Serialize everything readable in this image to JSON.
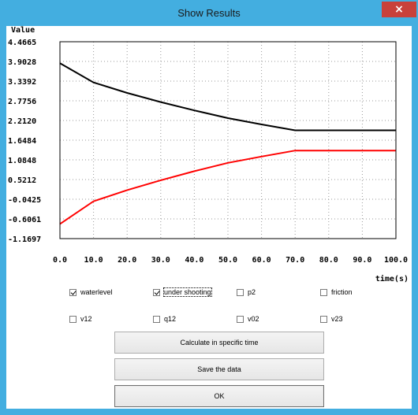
{
  "window": {
    "title": "Show Results",
    "close_label": "×"
  },
  "chart_data": {
    "type": "line",
    "ylabel": "Value",
    "xlabel": "time(s)",
    "y_ticks": [
      "4.4665",
      "3.9028",
      "3.3392",
      "2.7756",
      "2.2120",
      "1.6484",
      "1.0848",
      "0.5212",
      "-0.0425",
      "-0.6061",
      "-1.1697"
    ],
    "x_ticks": [
      "0.0",
      "10.0",
      "20.0",
      "30.0",
      "40.0",
      "50.0",
      "60.0",
      "70.0",
      "80.0",
      "90.0",
      "100.0"
    ],
    "xlim": [
      0,
      100
    ],
    "ylim": [
      -1.1697,
      4.4665
    ],
    "grid": true,
    "series": [
      {
        "color": "#000000",
        "x": [
          0,
          10,
          20,
          30,
          40,
          50,
          60,
          70,
          80,
          90,
          100
        ],
        "y": [
          3.85,
          3.3,
          3.0,
          2.74,
          2.5,
          2.28,
          2.1,
          1.93,
          1.93,
          1.93,
          1.93
        ]
      },
      {
        "color": "#ff0000",
        "x": [
          0,
          10,
          20,
          30,
          40,
          50,
          60,
          70,
          80,
          90,
          100
        ],
        "y": [
          -0.75,
          -0.1,
          0.22,
          0.5,
          0.76,
          1.0,
          1.18,
          1.35,
          1.35,
          1.35,
          1.35
        ]
      }
    ]
  },
  "checkboxes": [
    {
      "label": "waterlevel",
      "checked": true
    },
    {
      "label": "under shooting",
      "checked": true
    },
    {
      "label": "p2",
      "checked": false
    },
    {
      "label": "friction",
      "checked": false
    },
    {
      "label": "v12",
      "checked": false
    },
    {
      "label": "q12",
      "checked": false
    },
    {
      "label": "v02",
      "checked": false
    },
    {
      "label": "v23",
      "checked": false
    }
  ],
  "buttons": {
    "calculate": "Calculate in specific time",
    "save": "Save the data",
    "ok": "OK"
  }
}
